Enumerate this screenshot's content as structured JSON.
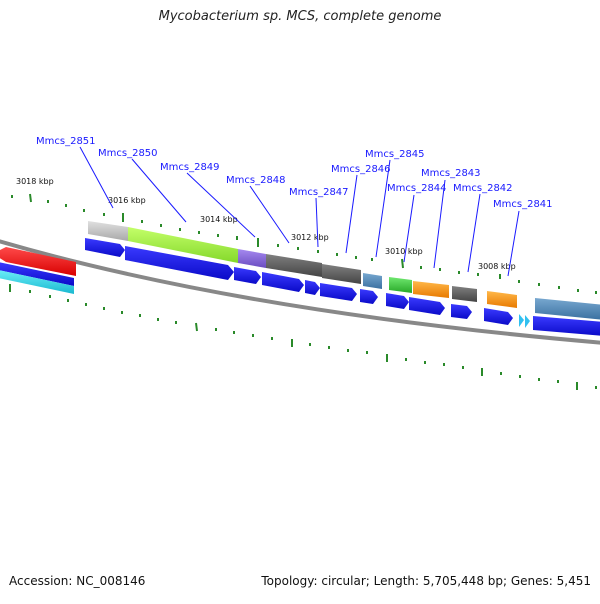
{
  "title": "Mycobacterium sp. MCS, complete genome",
  "accession": "Accession: NC_008146",
  "summary": {
    "topology": "circular",
    "length": "5,705,448 bp",
    "genes": "5,451",
    "text": "Topology: circular; Length: 5,705,448 bp; Genes: 5,451"
  },
  "ruler_labels": [
    "3018 kbp",
    "3016 kbp",
    "3014 kbp",
    "3012 kbp",
    "3010 kbp",
    "3008 kbp"
  ],
  "gene_labels": [
    "Mmcs_2851",
    "Mmcs_2850",
    "Mmcs_2849",
    "Mmcs_2848",
    "Mmcs_2847",
    "Mmcs_2846",
    "Mmcs_2845",
    "Mmcs_2844",
    "Mmcs_2843",
    "Mmcs_2842",
    "Mmcs_2841"
  ],
  "colors": {
    "label_blue": "#1a1aff",
    "gene_blue": "#1010ee",
    "backbone": "#888888",
    "tick_green": "#2a8a2a",
    "red": "#ff1a1a",
    "cyan": "#2ad8e8",
    "lime": "#a8f040",
    "purple": "#8c6cd8",
    "dark_gray": "#5a5a5a",
    "light_gray": "#c8c8c8",
    "steel_blue": "#4f88b8",
    "green": "#40c840",
    "orange": "#ff9a1a"
  }
}
